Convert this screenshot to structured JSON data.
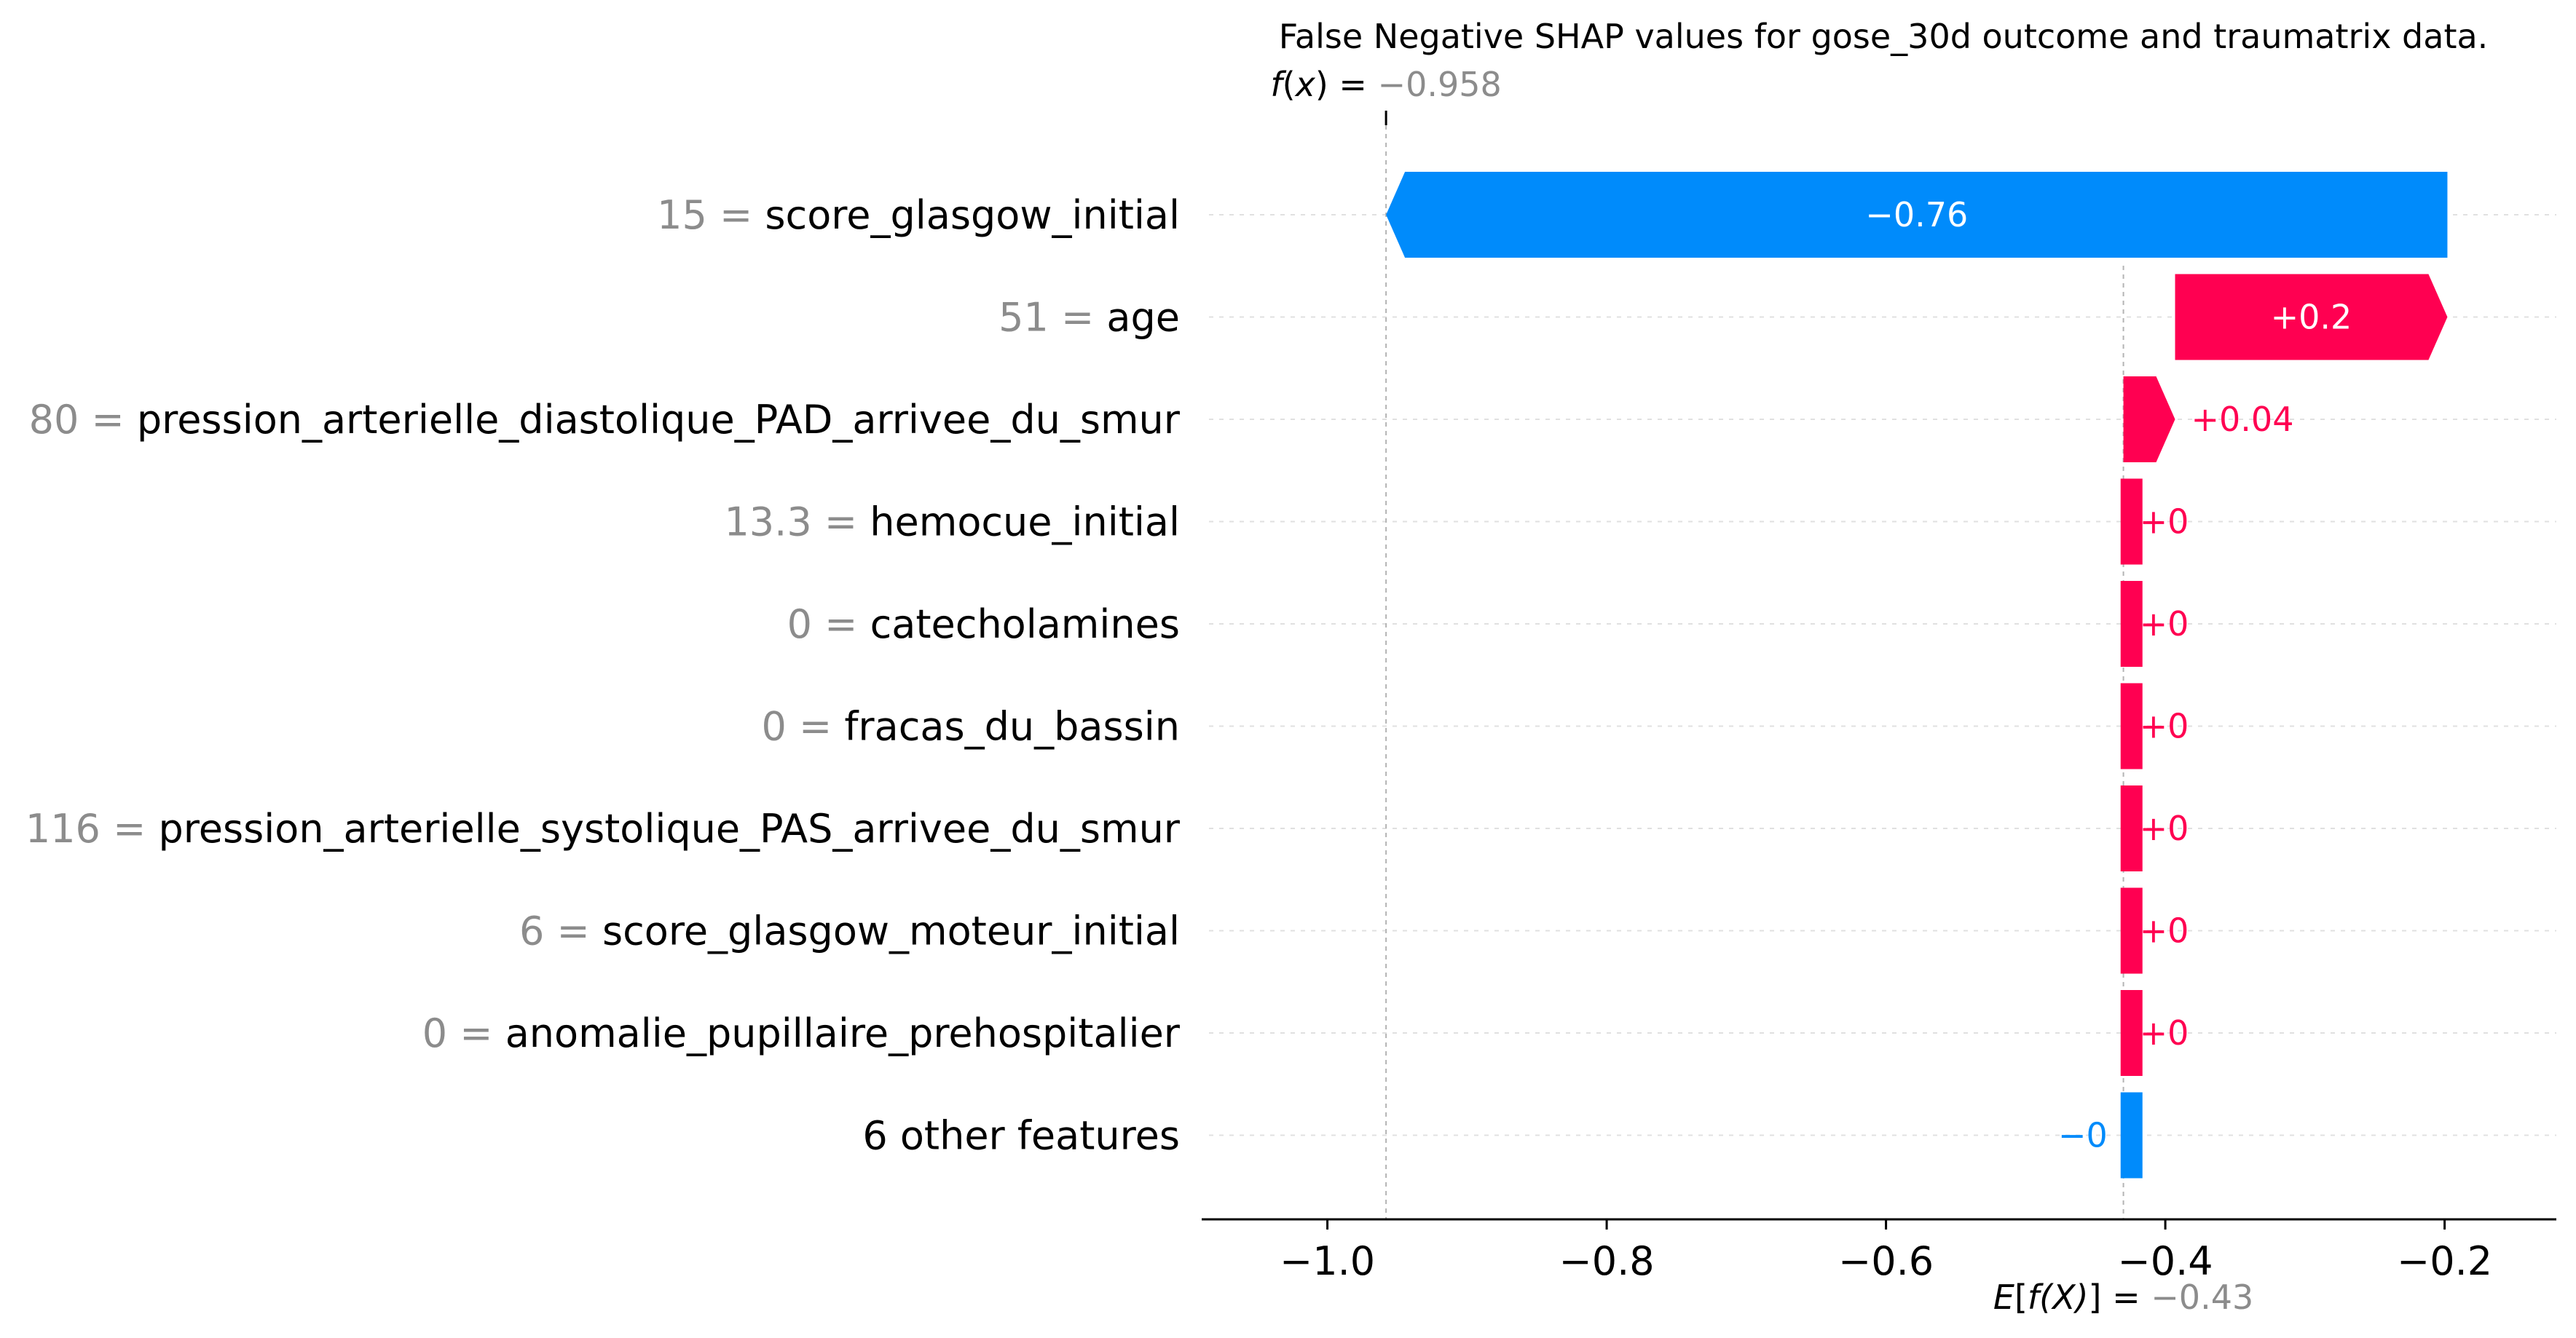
{
  "chart_data": {
    "type": "bar",
    "title": "False Negative SHAP values for gose_30d outcome and traumatrix data.",
    "fx": {
      "prefix": "f",
      "arg": "x",
      "value_text": "−0.958",
      "value": -0.958
    },
    "efx": {
      "prefix": "E",
      "arg": "f(X)",
      "value_text": "−0.43",
      "value": -0.43
    },
    "x_range": [
      -1.09,
      -0.12
    ],
    "x_ticks": [
      {
        "value": -1.0,
        "label": "−1.0"
      },
      {
        "value": -0.8,
        "label": "−0.8"
      },
      {
        "value": -0.6,
        "label": "−0.6"
      },
      {
        "value": -0.4,
        "label": "−0.4"
      },
      {
        "value": -0.2,
        "label": "−0.2"
      }
    ],
    "features": [
      {
        "value_text": "15",
        "name": "score_glasgow_initial",
        "start": -0.198,
        "end": -0.958,
        "label": "−0.76"
      },
      {
        "value_text": "51",
        "name": "age",
        "start": -0.393,
        "end": -0.198,
        "label": "+0.2"
      },
      {
        "value_text": "80",
        "name": "pression_arterielle_diastolique_PAD_arrivee_du_smur",
        "start": -0.43,
        "end": -0.393,
        "label": "+0.04"
      },
      {
        "value_text": "13.3",
        "name": "hemocue_initial",
        "start": -0.432,
        "end": -0.43,
        "label": "+0"
      },
      {
        "value_text": "0",
        "name": "catecholamines",
        "start": -0.432,
        "end": -0.43,
        "label": "+0"
      },
      {
        "value_text": "0",
        "name": "fracas_du_bassin",
        "start": -0.432,
        "end": -0.43,
        "label": "+0"
      },
      {
        "value_text": "116",
        "name": "pression_arterielle_systolique_PAS_arrivee_du_smur",
        "start": -0.432,
        "end": -0.43,
        "label": "+0"
      },
      {
        "value_text": "6",
        "name": "score_glasgow_moteur_initial",
        "start": -0.432,
        "end": -0.43,
        "label": "+0"
      },
      {
        "value_text": "0",
        "name": "anomalie_pupillaire_prehospitalier",
        "start": -0.432,
        "end": -0.43,
        "label": "+0"
      },
      {
        "value_text": "",
        "name": "6 other features",
        "start": -0.419,
        "end": -0.432,
        "label": "−0"
      }
    ],
    "colors": {
      "positive": "#ff0051",
      "negative": "#008bfb",
      "muted": "#8c8c8c"
    }
  }
}
